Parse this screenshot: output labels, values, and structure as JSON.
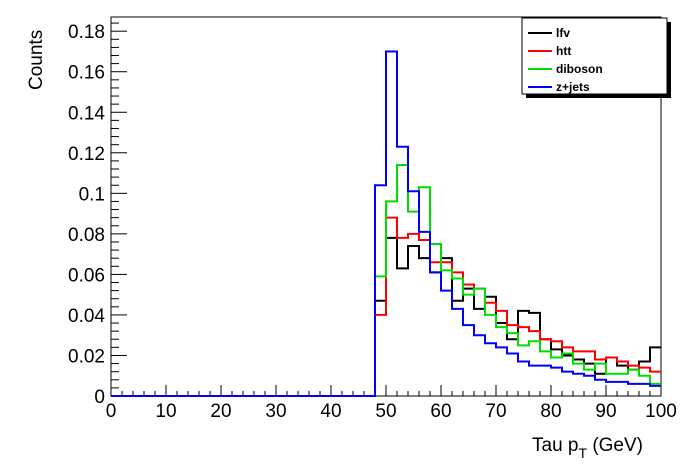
{
  "chart_data": {
    "type": "line",
    "style": "step-histogram",
    "xlabel_main": "Tau p",
    "xlabel_sub": "T",
    "xlabel_unit": " (GeV)",
    "ylabel": "Counts",
    "xlim": [
      0,
      100
    ],
    "ylim": [
      0,
      0.187
    ],
    "x_ticks": [
      0,
      10,
      20,
      30,
      40,
      50,
      60,
      70,
      80,
      90,
      100
    ],
    "y_ticks": [
      0,
      0.02,
      0.04,
      0.06,
      0.08,
      0.1,
      0.12,
      0.14,
      0.16,
      0.18
    ],
    "y_tick_labels": [
      "0",
      "0.02",
      "0.04",
      "0.06",
      "0.08",
      "0.1",
      "0.12",
      "0.14",
      "0.16",
      "0.18"
    ],
    "bins_start": 48,
    "bin_width": 2,
    "legend_position": "top-right",
    "grid": false,
    "series": [
      {
        "name": "lfv",
        "color": "#000000",
        "values": [
          0.047,
          0.078,
          0.063,
          0.074,
          0.068,
          0.061,
          0.068,
          0.047,
          0.053,
          0.043,
          0.049,
          0.036,
          0.028,
          0.042,
          0.041,
          0.028,
          0.023,
          0.02,
          0.018,
          0.016,
          0.011,
          0.019,
          0.015,
          0.013,
          0.017,
          0.024
        ]
      },
      {
        "name": "htt",
        "color": "#ff0000",
        "values": [
          0.04,
          0.088,
          0.078,
          0.08,
          0.077,
          0.066,
          0.066,
          0.061,
          0.055,
          0.053,
          0.046,
          0.042,
          0.035,
          0.034,
          0.032,
          0.028,
          0.027,
          0.024,
          0.022,
          0.022,
          0.018,
          0.019,
          0.017,
          0.015,
          0.014,
          0.012
        ]
      },
      {
        "name": "diboson",
        "color": "#00dd00",
        "values": [
          0.059,
          0.096,
          0.114,
          0.091,
          0.103,
          0.075,
          0.062,
          0.058,
          0.05,
          0.053,
          0.04,
          0.034,
          0.031,
          0.025,
          0.027,
          0.022,
          0.019,
          0.021,
          0.016,
          0.013,
          0.016,
          0.011,
          0.011,
          0.013,
          0.01,
          0.006
        ]
      },
      {
        "name": "z+jets",
        "color": "#0000ff",
        "values": [
          0.104,
          0.17,
          0.123,
          0.101,
          0.081,
          0.061,
          0.052,
          0.043,
          0.035,
          0.03,
          0.026,
          0.024,
          0.021,
          0.017,
          0.015,
          0.015,
          0.014,
          0.012,
          0.011,
          0.01,
          0.008,
          0.007,
          0.007,
          0.006,
          0.006,
          0.005
        ]
      }
    ]
  }
}
